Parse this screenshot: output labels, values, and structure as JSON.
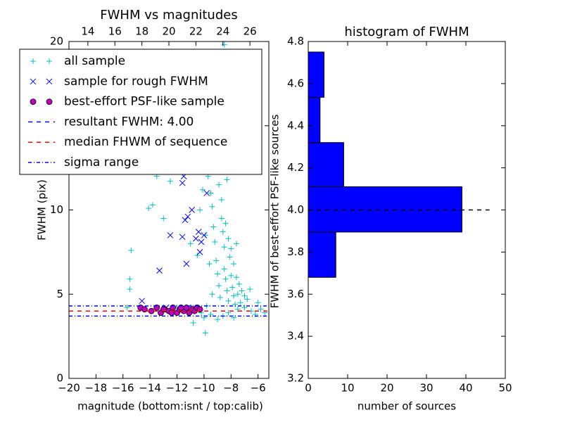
{
  "chart_data": [
    {
      "type": "scatter",
      "title": "FWHM vs magnitudes",
      "xlabel": "magnitude (bottom:isnt / top:calib)",
      "ylabel": "FWHM (pix)",
      "xlim": [
        -20,
        -5.2
      ],
      "xticks": [
        {
          "value": -20,
          "label": "−20"
        },
        {
          "value": -18,
          "label": "−18"
        },
        {
          "value": -16,
          "label": "−16"
        },
        {
          "value": -14,
          "label": "−14"
        },
        {
          "value": -12,
          "label": "−12"
        },
        {
          "value": -10,
          "label": "−10"
        },
        {
          "value": -8,
          "label": "−8"
        },
        {
          "value": -6,
          "label": "−6"
        }
      ],
      "x2lim": [
        12.6,
        27.4
      ],
      "x2ticks": [
        14,
        16,
        18,
        20,
        22,
        24,
        26
      ],
      "ylim": [
        0,
        20
      ],
      "yticks": [
        0,
        5,
        10,
        15,
        20
      ],
      "legend": "upper left",
      "series": [
        {
          "name": "all sample",
          "color": "#00bfbf",
          "marker": "+",
          "x": [
            -15.5,
            -15.7,
            -15.4,
            -15.5,
            -14.1,
            -13.8,
            -13.5,
            -13.0,
            -12.5,
            -12.0,
            -11.5,
            -11.0,
            -10.5,
            -10.2,
            -10.0,
            -10.1,
            -9.8,
            -9.6,
            -9.5,
            -9.4,
            -9.3,
            -9.2,
            -9.1,
            -9.0,
            -8.9,
            -8.8,
            -8.7,
            -8.6,
            -8.5,
            -8.5,
            -8.4,
            -8.3,
            -8.2,
            -8.1,
            -8.0,
            -7.9,
            -7.8,
            -7.7,
            -7.5,
            -7.3,
            -7.0,
            -6.8,
            -6.5,
            -6.2,
            -5.8,
            -5.5,
            -9.7,
            -9.6,
            -9.3,
            -9.0,
            -8.8,
            -8.5,
            -9.2,
            -8.9,
            -8.7,
            -8.4,
            -8.2,
            -8.0,
            -7.8,
            -7.6,
            -7.4,
            -7.2,
            -7.0,
            -9.8,
            -9.5,
            -9.0,
            -8.6,
            -8.2,
            -7.8,
            -7.5,
            -10.8,
            -9.9,
            -9.4,
            -9.6,
            -9.9,
            -10.3,
            -6.0,
            -6.6,
            -7.6,
            -8.3
          ],
          "y": [
            5.9,
            4.2,
            7.6,
            5.3,
            10.1,
            10.3,
            12.0,
            9.5,
            11.7,
            4.2,
            4.0,
            8.0,
            7.3,
            3.9,
            3.6,
            11.2,
            12.5,
            13.8,
            11.0,
            10.2,
            9.0,
            8.1,
            7.0,
            6.2,
            5.5,
            4.8,
            9.5,
            8.7,
            7.8,
            6.5,
            5.9,
            5.2,
            4.6,
            7.2,
            6.1,
            5.4,
            4.9,
            4.4,
            5.0,
            4.5,
            4.2,
            4.7,
            4.0,
            3.8,
            4.1,
            3.9,
            12.0,
            14.2,
            15.5,
            17.0,
            19.2,
            19.8,
            12.8,
            11.5,
            10.6,
            9.2,
            8.3,
            7.7,
            6.8,
            6.0,
            5.6,
            5.2,
            4.9,
            4.3,
            3.8,
            3.5,
            3.7,
            3.9,
            3.6,
            4.1,
            3.3,
            2.7,
            5.0,
            6.8,
            8.5,
            10.0,
            4.5,
            5.3,
            8.0,
            11.8
          ]
        },
        {
          "name": "sample for rough FWHM",
          "color": "#0000ff",
          "marker": "x",
          "x": [
            -13.3,
            -14.6,
            -12.5,
            -11.6,
            -11.3,
            -11.4,
            -11.5,
            -11.6,
            -10.9,
            -10.6,
            -10.4,
            -10.2,
            -10.0,
            -9.8,
            -9.9,
            -9.7,
            -10.8,
            -12.8,
            -10.3,
            -11.2
          ],
          "y": [
            6.4,
            4.6,
            8.5,
            8.4,
            6.8,
            9.4,
            12.0,
            11.6,
            10.0,
            8.3,
            8.7,
            8.1,
            8.5,
            11.0,
            13.3,
            13.1,
            4.2,
            4.2,
            7.5,
            9.6
          ]
        },
        {
          "name": "best-effort PSF-like sample",
          "color": "#bf00bf",
          "marker": "o",
          "x": [
            -14.7,
            -14.4,
            -13.9,
            -13.5,
            -13.2,
            -12.9,
            -12.6,
            -12.3,
            -12.0,
            -11.8,
            -11.5,
            -11.3,
            -11.1,
            -10.9,
            -10.7,
            -10.5,
            -10.3,
            -12.4,
            -13.0,
            -11.7
          ],
          "y": [
            4.2,
            4.1,
            4.0,
            4.2,
            3.9,
            4.1,
            4.0,
            4.2,
            3.9,
            4.1,
            4.0,
            4.2,
            3.9,
            4.1,
            4.0,
            4.2,
            4.1,
            3.9,
            4.1,
            4.2
          ]
        }
      ],
      "hlines": [
        {
          "name": "resultant FWHM: 4.00",
          "color": "#0000ff",
          "style": "dashed",
          "values": [
            4.0
          ]
        },
        {
          "name": "median FHWM of sequence",
          "color": "#ff0000",
          "style": "dashed",
          "values": [
            4.0
          ]
        },
        {
          "name": "sigma range",
          "color": "#0000ff",
          "style": "dashdot",
          "values": [
            3.7,
            4.3
          ]
        }
      ]
    },
    {
      "type": "histogram",
      "orientation": "horizontal",
      "title": "histogram of FWHM",
      "xlabel": "number of sources",
      "ylabel": "FWHM of best-effort PSF-like sources",
      "bins": [
        3.68,
        3.895,
        4.11,
        4.32,
        4.535,
        4.75
      ],
      "counts": [
        7,
        39,
        9,
        3,
        4
      ],
      "color": "#0000ff",
      "xlim": [
        0,
        50
      ],
      "xticks": [
        0,
        10,
        20,
        30,
        40,
        50
      ],
      "ylim": [
        3.2,
        4.8
      ],
      "yticks": [
        3.2,
        3.4,
        3.6,
        3.8,
        {
          "value": 4,
          "label": "4.0"
        },
        4.2,
        4.4,
        4.6,
        4.8
      ],
      "hline": {
        "value": 4.0,
        "xmax": 46,
        "color": "#000000",
        "style": "dashed"
      }
    }
  ]
}
